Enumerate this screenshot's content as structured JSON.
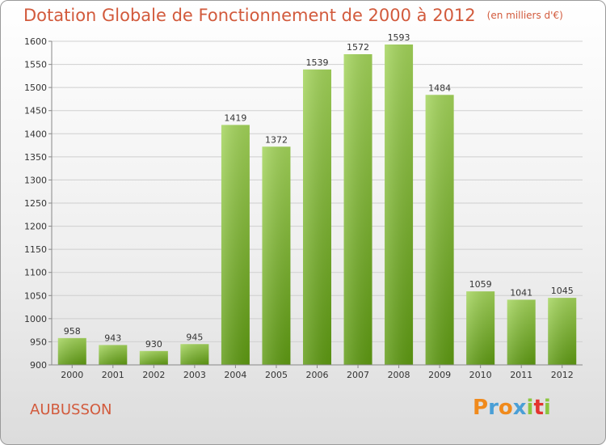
{
  "title": "Dotation Globale de Fonctionnement de 2000 à 2012",
  "subtitle": "(en milliers d'€)",
  "place": "AUBUSSON",
  "logo": {
    "text": "Proxiti",
    "letters": [
      {
        "ch": "P",
        "color": "#f08a1c"
      },
      {
        "ch": "r",
        "color": "#4a9fd6"
      },
      {
        "ch": "o",
        "color": "#f08a1c"
      },
      {
        "ch": "x",
        "color": "#4a9fd6"
      },
      {
        "ch": "i",
        "color": "#8cc63f"
      },
      {
        "ch": "t",
        "color": "#e3342f"
      },
      {
        "ch": "i",
        "color": "#8cc63f"
      }
    ]
  },
  "colors": {
    "bar_top": "#a3d45a",
    "bar_bottom": "#5e9a12",
    "text": "#d25a3c",
    "grid": "#cfcfcf"
  },
  "chart_data": {
    "type": "bar",
    "categories": [
      "2000",
      "2001",
      "2002",
      "2003",
      "2004",
      "2005",
      "2006",
      "2007",
      "2008",
      "2009",
      "2010",
      "2011",
      "2012"
    ],
    "values": [
      958,
      943,
      930,
      945,
      1419,
      1372,
      1539,
      1572,
      1593,
      1484,
      1059,
      1041,
      1045
    ],
    "ylim": [
      900,
      1600
    ],
    "yticks": [
      900,
      950,
      1000,
      1050,
      1100,
      1150,
      1200,
      1250,
      1300,
      1350,
      1400,
      1450,
      1500,
      1550,
      1600
    ],
    "grid": true
  }
}
